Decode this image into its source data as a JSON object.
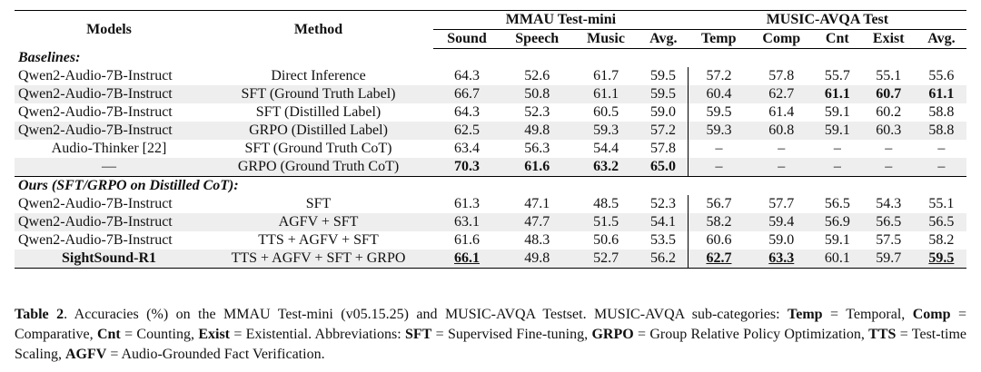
{
  "table": {
    "header": [
      "Models",
      "Method",
      "MMAU Test-mini",
      "MUSIC-AVQA Test"
    ],
    "subheader": [
      "Sound",
      "Speech",
      "Music",
      "Avg.",
      "Temp",
      "Comp",
      "Cnt",
      "Exist",
      "Avg."
    ],
    "sections": [
      {
        "title": "Baselines:",
        "rows": [
          {
            "cells": [
              "Qwen2-Audio-7B-Instruct",
              "Direct Inference",
              "64.3",
              "52.6",
              "61.7",
              "59.5",
              "57.2",
              "57.8",
              "55.7",
              "55.1",
              "55.6"
            ]
          },
          {
            "cells": [
              "Qwen2-Audio-7B-Instruct",
              "SFT (Ground Truth Label)",
              "66.7",
              "50.8",
              "61.1",
              "59.5",
              "60.4",
              "62.7",
              "61.1",
              "60.7",
              "61.1"
            ],
            "bold": [
              8,
              9,
              10
            ]
          },
          {
            "cells": [
              "Qwen2-Audio-7B-Instruct",
              "SFT (Distilled Label)",
              "64.3",
              "52.3",
              "60.5",
              "59.0",
              "59.5",
              "61.4",
              "59.1",
              "60.2",
              "58.8"
            ]
          },
          {
            "cells": [
              "Qwen2-Audio-7B-Instruct",
              "GRPO (Distilled Label)",
              "62.5",
              "49.8",
              "59.3",
              "57.2",
              "59.3",
              "60.8",
              "59.1",
              "60.3",
              "58.8"
            ]
          },
          {
            "cells": [
              "Audio-Thinker [22]",
              "SFT (Ground Truth CoT)",
              "63.4",
              "56.3",
              "54.4",
              "57.8",
              "–",
              "–",
              "–",
              "–",
              "–"
            ]
          },
          {
            "cells": [
              "—",
              "GRPO (Ground Truth CoT)",
              "70.3",
              "61.6",
              "63.2",
              "65.0",
              "–",
              "–",
              "–",
              "–",
              "–"
            ],
            "bold": [
              2,
              3,
              4,
              5
            ]
          }
        ]
      },
      {
        "title": "Ours (SFT/GRPO on Distilled CoT):",
        "rows": [
          {
            "cells": [
              "Qwen2-Audio-7B-Instruct",
              "SFT",
              "61.3",
              "47.1",
              "48.5",
              "52.3",
              "56.7",
              "57.7",
              "56.5",
              "54.3",
              "55.1"
            ]
          },
          {
            "cells": [
              "Qwen2-Audio-7B-Instruct",
              "AGFV + SFT",
              "63.1",
              "47.7",
              "51.5",
              "54.1",
              "58.2",
              "59.4",
              "56.9",
              "56.5",
              "56.5"
            ]
          },
          {
            "cells": [
              "Qwen2-Audio-7B-Instruct",
              "TTS + AGFV + SFT",
              "61.6",
              "48.3",
              "50.6",
              "53.5",
              "60.6",
              "59.0",
              "59.1",
              "57.5",
              "58.2"
            ]
          },
          {
            "cells": [
              "SightSound-R1",
              "TTS + AGFV + SFT + GRPO",
              "66.1",
              "49.8",
              "52.7",
              "56.2",
              "62.7",
              "63.3",
              "60.1",
              "59.7",
              "59.5"
            ],
            "bold": [
              0,
              2,
              6,
              7,
              10
            ],
            "underline": [
              2,
              6,
              7,
              10
            ]
          }
        ]
      }
    ]
  },
  "caption": [
    {
      "text": "Table 2",
      "bold": true
    },
    {
      "text": ". Accuracies (%) on the MMAU Test-mini (v05.15.25) and MUSIC-AVQA Testset. MUSIC-AVQA sub-categories: "
    },
    {
      "text": "Temp",
      "bold": true
    },
    {
      "text": " = Temporal, "
    },
    {
      "text": "Comp",
      "bold": true
    },
    {
      "text": " = Comparative, "
    },
    {
      "text": "Cnt",
      "bold": true
    },
    {
      "text": " = Counting, "
    },
    {
      "text": "Exist",
      "bold": true
    },
    {
      "text": " = Existential. Abbreviations: "
    },
    {
      "text": "SFT",
      "bold": true
    },
    {
      "text": " = Supervised Fine-tuning, "
    },
    {
      "text": "GRPO",
      "bold": true
    },
    {
      "text": " = Group Relative Policy Optimization, "
    },
    {
      "text": "TTS",
      "bold": true
    },
    {
      "text": " = Test-time Scaling, "
    },
    {
      "text": "AGFV",
      "bold": true
    },
    {
      "text": " = Audio-Grounded Fact Verification."
    }
  ]
}
